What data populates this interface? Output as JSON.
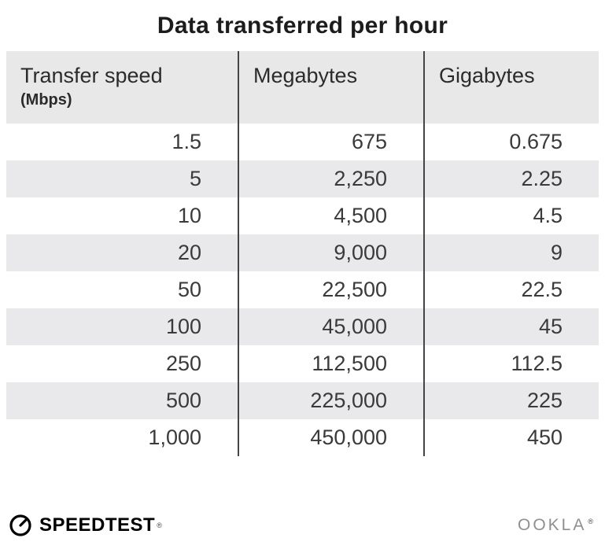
{
  "chart_data": {
    "type": "table",
    "title": "Data transferred per hour",
    "columns": [
      "Transfer speed (Mbps)",
      "Megabytes",
      "Gigabytes"
    ],
    "header": {
      "speed_label": "Transfer speed",
      "speed_unit": "(Mbps)",
      "megabytes": "Megabytes",
      "gigabytes": "Gigabytes"
    },
    "rows": [
      [
        "1.5",
        "675",
        "0.675"
      ],
      [
        "5",
        "2,250",
        "2.25"
      ],
      [
        "10",
        "4,500",
        "4.5"
      ],
      [
        "20",
        "9,000",
        "9"
      ],
      [
        "50",
        "22,500",
        "22.5"
      ],
      [
        "100",
        "45,000",
        "45"
      ],
      [
        "250",
        "112,500",
        "112.5"
      ],
      [
        "500",
        "225,000",
        "225"
      ],
      [
        "1,000",
        "450,000",
        "450"
      ]
    ],
    "layout": {
      "header_background": "#e8e8e8",
      "alt_row_background": "#e9e9ec",
      "column_divider_color": "#454545",
      "value_alignment": "right"
    }
  },
  "footer": {
    "speedtest": "SPEEDTEST",
    "speedtest_mark": "®",
    "ookla": "OOKLA",
    "ookla_mark": "®"
  }
}
